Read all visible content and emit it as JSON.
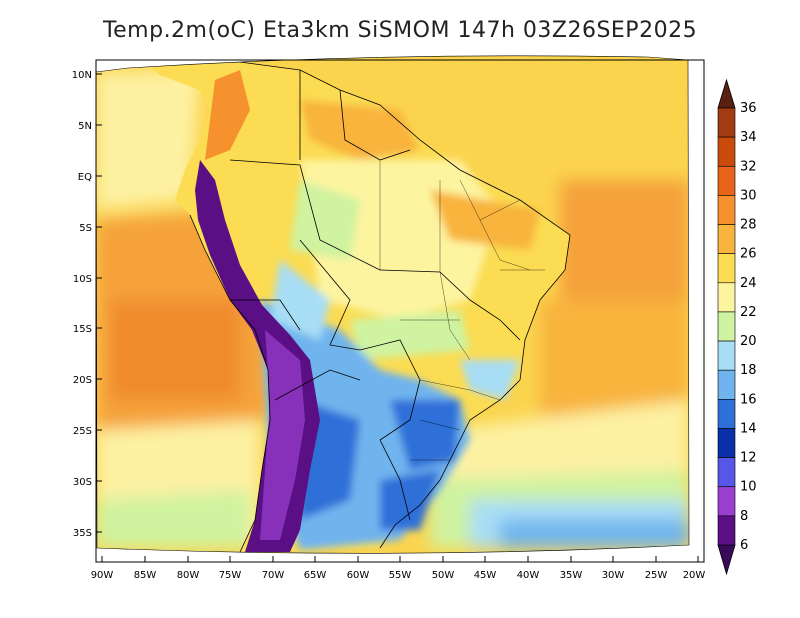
{
  "title": "Temp.2m(oC) Eta3km SiSMOM 147h 03Z26SEP2025",
  "lon_ticks": [
    "90W",
    "85W",
    "80W",
    "75W",
    "70W",
    "65W",
    "60W",
    "55W",
    "50W",
    "45W",
    "40W",
    "35W",
    "30W",
    "25W",
    "20W"
  ],
  "lat_ticks": [
    "10N",
    "5N",
    "EQ",
    "5S",
    "10S",
    "15S",
    "20S",
    "25S",
    "30S",
    "35S"
  ],
  "colorbar": {
    "levels": [
      "36",
      "34",
      "32",
      "30",
      "28",
      "26",
      "24",
      "22",
      "20",
      "18",
      "16",
      "14",
      "12",
      "10",
      "8",
      "6"
    ],
    "colors": [
      "#7a2a14",
      "#a33a10",
      "#c94c0d",
      "#e8641a",
      "#f5922e",
      "#f8b43c",
      "#fbdc52",
      "#fdf4a0",
      "#cff3a0",
      "#a7ddf5",
      "#6fb4ee",
      "#2f6fd8",
      "#0a2fa6",
      "#5656e8",
      "#9a3fd0",
      "#5a0f85"
    ]
  },
  "colors": {
    "ocean_warm": "#f5a23a",
    "ocean_mid": "#fbd44e",
    "ocean_cool": "#fdf1a2",
    "land_green": "#cff3a0",
    "andes_purple": "#5a0f85",
    "cold_blue": "#2f6fd8",
    "light_blue": "#a7ddf5"
  }
}
